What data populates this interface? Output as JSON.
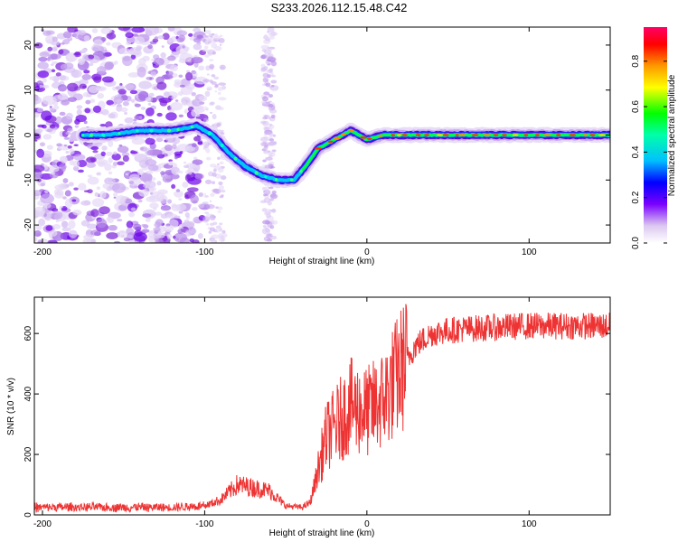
{
  "title": "S233.2026.112.15.48.C42",
  "chart_data": [
    {
      "type": "heatmap",
      "xlabel": "Height of straight line (km)",
      "ylabel": "Frequency (Hz)",
      "xlim": [
        -205,
        150
      ],
      "ylim": [
        -24,
        24
      ],
      "xticks": [
        -200,
        -100,
        0,
        100
      ],
      "yticks": [
        -20,
        -10,
        0,
        10,
        20
      ],
      "colorbar": {
        "label": "Normalized spectral amplitude",
        "range": [
          0,
          0.95
        ],
        "ticks": [
          0.0,
          0.2,
          0.4,
          0.6,
          0.8
        ]
      },
      "ridge": {
        "x": [
          -175,
          -160,
          -140,
          -120,
          -105,
          -95,
          -85,
          -75,
          -65,
          -55,
          -45,
          -38,
          -30,
          -20,
          -10,
          0,
          10,
          30,
          60,
          100,
          150
        ],
        "freq": [
          0,
          0,
          1,
          1,
          2,
          0,
          -4,
          -7,
          -9,
          -10,
          -10,
          -7,
          -3,
          -1,
          1,
          -1,
          0,
          0,
          0,
          0,
          0
        ]
      }
    },
    {
      "type": "line",
      "xlabel": "Height of straight line (km)",
      "ylabel": "SNR (10 * v/v)",
      "xlim": [
        -205,
        150
      ],
      "ylim": [
        0,
        720
      ],
      "xticks": [
        -200,
        -100,
        0,
        100
      ],
      "yticks": [
        0,
        200,
        400,
        600
      ],
      "series": [
        {
          "name": "SNR",
          "color": "#ee3333",
          "x": [
            -205,
            -180,
            -150,
            -120,
            -100,
            -90,
            -80,
            -70,
            -60,
            -50,
            -40,
            -35,
            -30,
            -25,
            -20,
            -10,
            0,
            10,
            20,
            30,
            40,
            50,
            60,
            80,
            100,
            120,
            150
          ],
          "y": [
            25,
            25,
            25,
            25,
            30,
            50,
            100,
            90,
            80,
            30,
            25,
            40,
            150,
            260,
            290,
            360,
            340,
            380,
            470,
            560,
            600,
            610,
            615,
            620,
            625,
            625,
            625
          ]
        }
      ]
    }
  ]
}
